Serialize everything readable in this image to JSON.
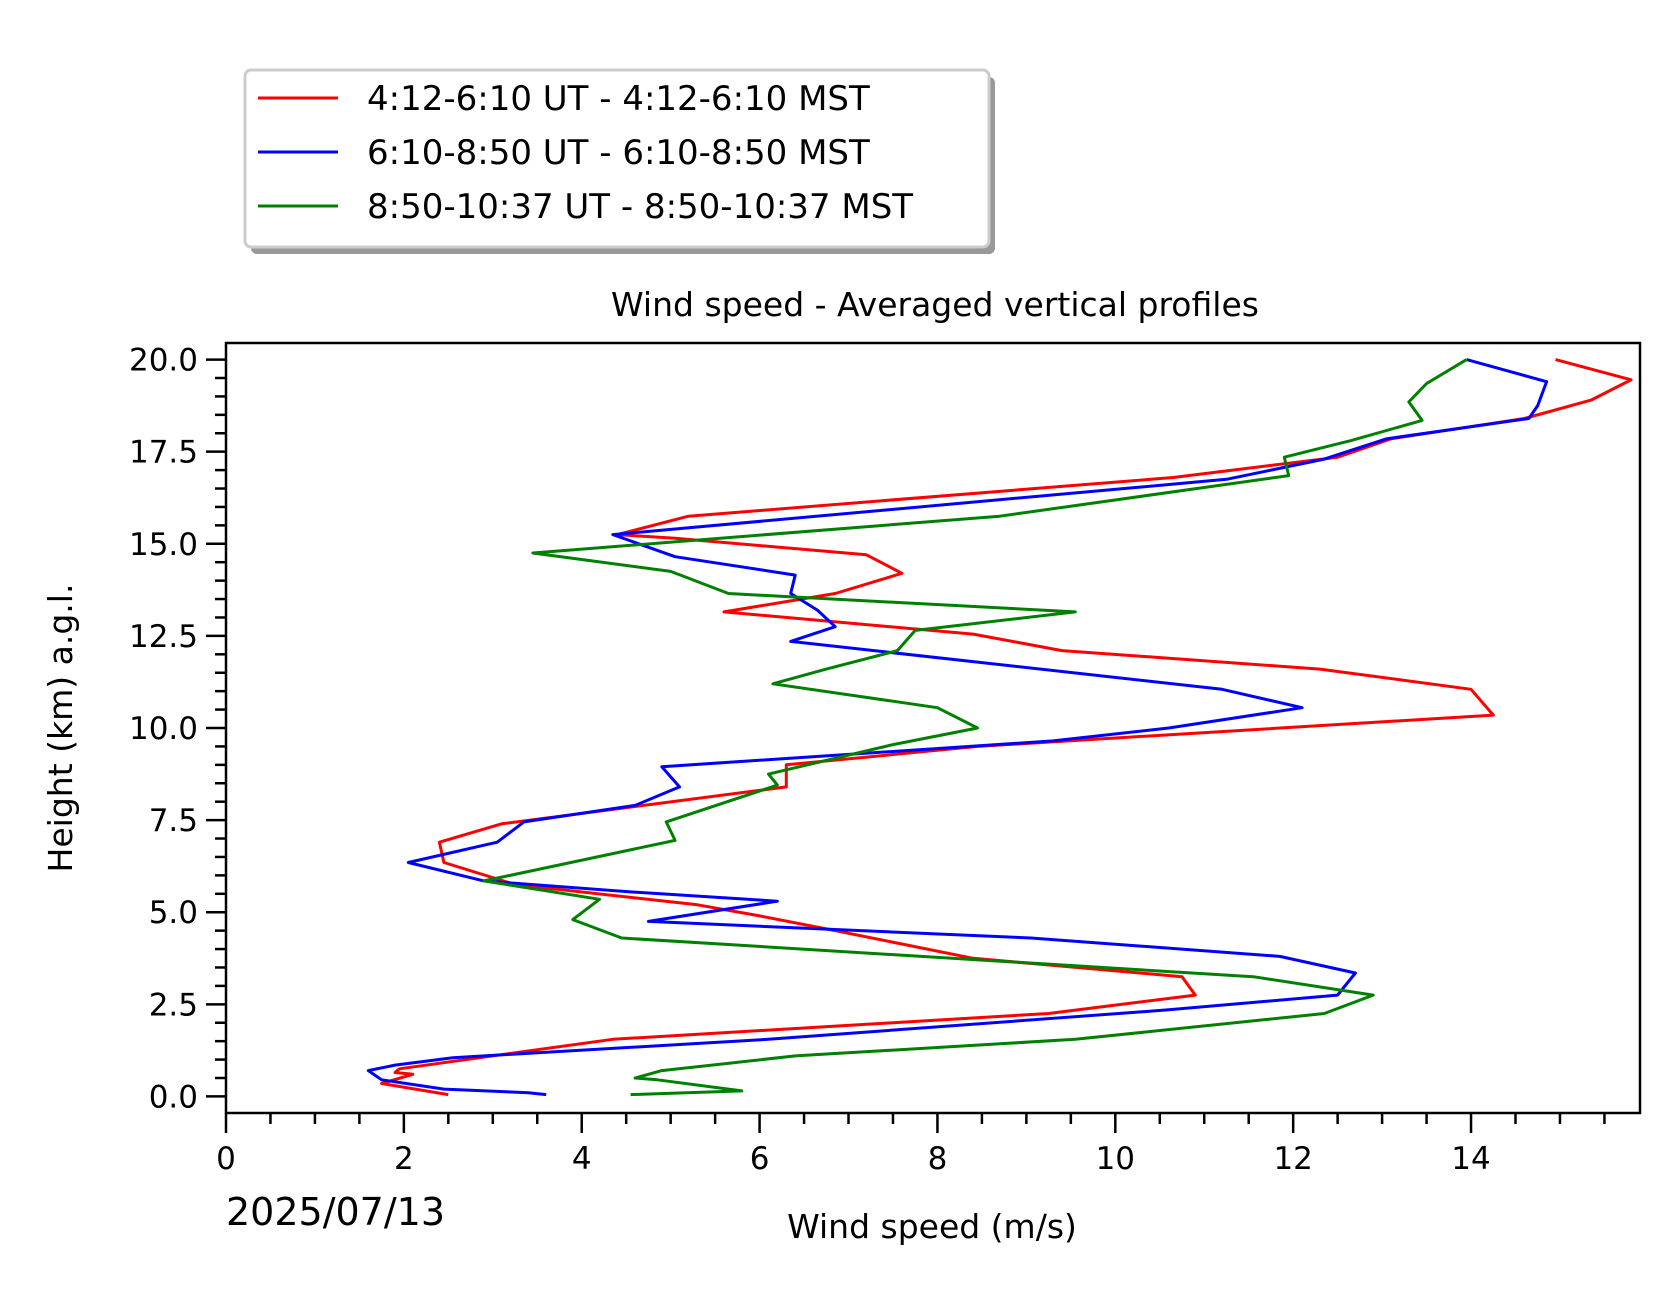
{
  "chart_data": {
    "type": "line",
    "title": "Wind speed - Averaged vertical profiles",
    "xlabel": "Wind speed (m/s)",
    "ylabel": "Height (km) a.g.l.",
    "date_label": "2025/07/13",
    "xlim": [
      0,
      15.9
    ],
    "ylim": [
      -0.45,
      20.45
    ],
    "x_ticks": [
      "0",
      "2",
      "4",
      "6",
      "8",
      "10",
      "12",
      "14"
    ],
    "x_tick_values": [
      0,
      2,
      4,
      6,
      8,
      10,
      12,
      14
    ],
    "y_ticks": [
      "0.0",
      "2.5",
      "5.0",
      "7.5",
      "10.0",
      "12.5",
      "15.0",
      "17.5",
      "20.0"
    ],
    "y_tick_values": [
      0,
      2.5,
      5,
      7.5,
      10,
      12.5,
      15,
      17.5,
      20
    ],
    "legend_position": "above-left",
    "series": [
      {
        "name": "4:12-6:10 UT - 4:12-6:10 MST",
        "color": "#ff0000",
        "points": [
          [
            2.5,
            0.05
          ],
          [
            1.75,
            0.35
          ],
          [
            2.1,
            0.6
          ],
          [
            1.9,
            0.65
          ],
          [
            1.95,
            0.75
          ],
          [
            4.35,
            1.55
          ],
          [
            9.25,
            2.25
          ],
          [
            10.9,
            2.75
          ],
          [
            10.75,
            3.25
          ],
          [
            8.4,
            3.75
          ],
          [
            6.85,
            4.5
          ],
          [
            6.0,
            4.9
          ],
          [
            5.3,
            5.2
          ],
          [
            3.25,
            5.75
          ],
          [
            2.45,
            6.35
          ],
          [
            2.4,
            6.9
          ],
          [
            3.1,
            7.4
          ],
          [
            6.3,
            8.4
          ],
          [
            6.3,
            9.0
          ],
          [
            8.45,
            9.5
          ],
          [
            14.25,
            10.35
          ],
          [
            14.0,
            11.05
          ],
          [
            12.3,
            11.6
          ],
          [
            9.4,
            12.1
          ],
          [
            8.4,
            12.55
          ],
          [
            5.6,
            13.15
          ],
          [
            6.85,
            13.65
          ],
          [
            7.6,
            14.2
          ],
          [
            7.2,
            14.7
          ],
          [
            5.05,
            15.15
          ],
          [
            4.4,
            15.25
          ],
          [
            5.2,
            15.75
          ],
          [
            10.65,
            16.8
          ],
          [
            12.5,
            17.35
          ],
          [
            13.1,
            17.85
          ],
          [
            14.6,
            18.4
          ],
          [
            15.35,
            18.9
          ],
          [
            15.8,
            19.45
          ],
          [
            14.95,
            20.0
          ]
        ]
      },
      {
        "name": "6:10-8:50 UT - 6:10-8:50 MST",
        "color": "#0000ff",
        "points": [
          [
            3.6,
            0.05
          ],
          [
            3.4,
            0.1
          ],
          [
            2.45,
            0.2
          ],
          [
            1.75,
            0.45
          ],
          [
            1.6,
            0.7
          ],
          [
            1.9,
            0.85
          ],
          [
            2.55,
            1.05
          ],
          [
            6.1,
            1.55
          ],
          [
            10.6,
            2.35
          ],
          [
            12.5,
            2.75
          ],
          [
            12.7,
            3.35
          ],
          [
            11.85,
            3.8
          ],
          [
            9.05,
            4.3
          ],
          [
            4.75,
            4.75
          ],
          [
            6.2,
            5.3
          ],
          [
            4.55,
            5.55
          ],
          [
            2.9,
            5.85
          ],
          [
            2.05,
            6.35
          ],
          [
            3.05,
            6.9
          ],
          [
            3.35,
            7.45
          ],
          [
            4.6,
            7.9
          ],
          [
            5.1,
            8.4
          ],
          [
            4.9,
            8.95
          ],
          [
            9.3,
            9.65
          ],
          [
            10.6,
            10.0
          ],
          [
            12.1,
            10.55
          ],
          [
            11.2,
            11.05
          ],
          [
            6.35,
            12.35
          ],
          [
            6.85,
            12.75
          ],
          [
            6.65,
            13.2
          ],
          [
            6.35,
            13.65
          ],
          [
            6.4,
            14.15
          ],
          [
            5.05,
            14.65
          ],
          [
            4.35,
            15.25
          ],
          [
            11.25,
            16.75
          ],
          [
            12.35,
            17.3
          ],
          [
            13.05,
            17.85
          ],
          [
            14.65,
            18.4
          ],
          [
            14.75,
            18.75
          ],
          [
            14.85,
            19.4
          ],
          [
            13.95,
            20.0
          ]
        ]
      },
      {
        "name": "8:50-10:37 UT - 8:50-10:37 MST",
        "color": "#008000",
        "points": [
          [
            4.55,
            0.05
          ],
          [
            5.8,
            0.15
          ],
          [
            4.85,
            0.45
          ],
          [
            4.6,
            0.5
          ],
          [
            4.9,
            0.7
          ],
          [
            6.4,
            1.1
          ],
          [
            9.55,
            1.55
          ],
          [
            12.35,
            2.25
          ],
          [
            12.9,
            2.75
          ],
          [
            11.55,
            3.25
          ],
          [
            4.45,
            4.3
          ],
          [
            3.9,
            4.8
          ],
          [
            4.2,
            5.35
          ],
          [
            2.9,
            5.85
          ],
          [
            5.05,
            6.95
          ],
          [
            4.95,
            7.45
          ],
          [
            6.2,
            8.45
          ],
          [
            6.1,
            8.75
          ],
          [
            7.5,
            9.55
          ],
          [
            8.45,
            10.0
          ],
          [
            8.0,
            10.55
          ],
          [
            6.15,
            11.2
          ],
          [
            6.75,
            11.6
          ],
          [
            7.55,
            12.1
          ],
          [
            7.75,
            12.65
          ],
          [
            9.55,
            13.15
          ],
          [
            5.65,
            13.65
          ],
          [
            5.0,
            14.25
          ],
          [
            3.45,
            14.75
          ],
          [
            8.7,
            15.75
          ],
          [
            11.95,
            16.85
          ],
          [
            11.9,
            17.35
          ],
          [
            12.65,
            17.8
          ],
          [
            13.45,
            18.35
          ],
          [
            13.3,
            18.85
          ],
          [
            13.5,
            19.35
          ],
          [
            13.95,
            20.0
          ]
        ]
      }
    ]
  }
}
